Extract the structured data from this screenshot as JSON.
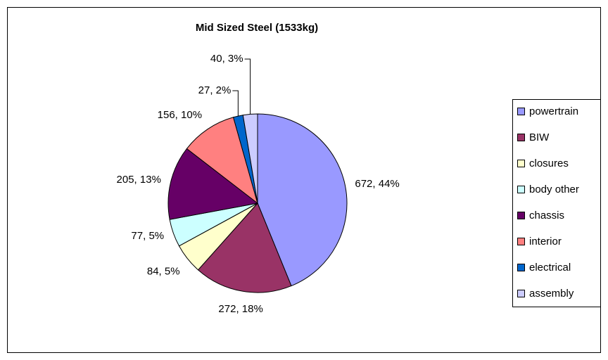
{
  "chart_data": {
    "type": "pie",
    "title": "Mid Sized Steel (1533kg)",
    "categories": [
      "powertrain",
      "BIW",
      "closures",
      "body other",
      "chassis",
      "interior",
      "electrical",
      "assembly"
    ],
    "values": [
      672,
      272,
      84,
      77,
      205,
      156,
      27,
      40
    ],
    "value_labels": [
      "672, 44%",
      "272, 18%",
      "84, 5%",
      "77, 5%",
      "205, 13%",
      "156, 10%",
      "27, 2%",
      "40, 3%"
    ],
    "colors": [
      "#9999ff",
      "#993366",
      "#ffffcc",
      "#ccffff",
      "#660066",
      "#ff8080",
      "#0066cc",
      "#ccccff"
    ],
    "legend": "right"
  }
}
